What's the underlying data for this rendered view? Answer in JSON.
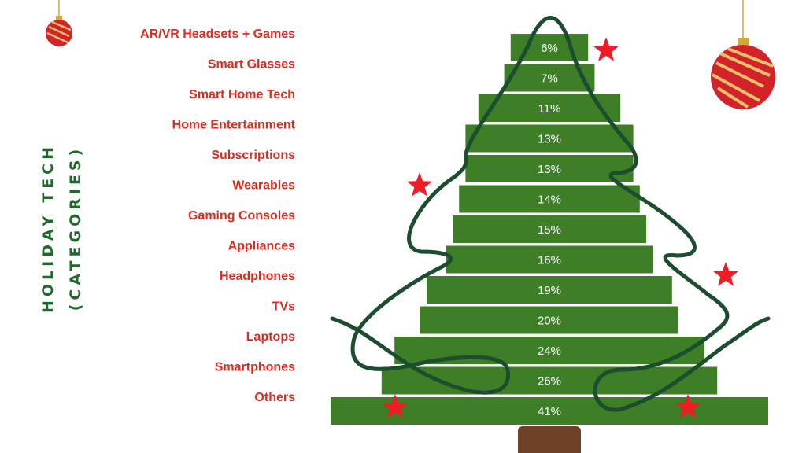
{
  "chart_data": {
    "type": "bar",
    "orientation": "horizontal-centered",
    "title_lines": [
      "HOLIDAY TECH",
      "(CATEGORIES)"
    ],
    "categories": [
      "AR/VR Headsets + Games",
      "Smart Glasses",
      "Smart Home Tech",
      "Home Entertainment",
      "Subscriptions",
      "Wearables",
      "Gaming Consoles",
      "Appliances",
      "Headphones",
      "TVs",
      "Laptops",
      "Smartphones",
      "Others"
    ],
    "values": [
      6,
      7,
      11,
      13,
      13,
      14,
      15,
      16,
      19,
      20,
      24,
      26,
      41
    ],
    "data_labels": [
      "6%",
      "7%",
      "11%",
      "13%",
      "13%",
      "14%",
      "15%",
      "16%",
      "19%",
      "20%",
      "24%",
      "26%",
      "41%"
    ],
    "unit": "%",
    "grid": false,
    "legend": "none",
    "colors": {
      "bar": "#3d7e26",
      "label": "#e02a1f",
      "title": "#1f6a2a",
      "garland": "#1b4d2e",
      "trunk": "#6e4128",
      "star": "#ee1c24"
    }
  }
}
